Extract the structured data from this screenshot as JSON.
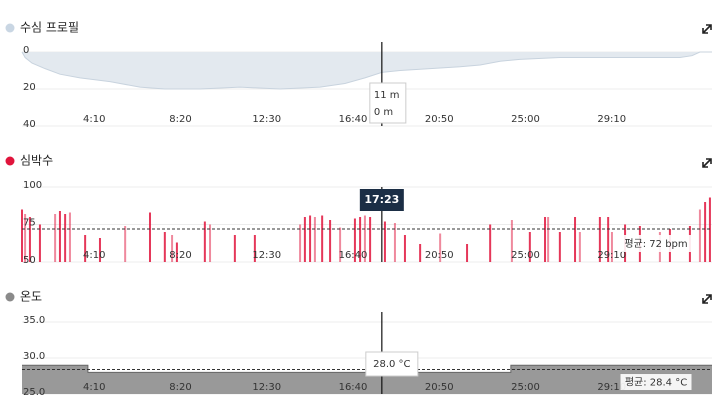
{
  "cursor": {
    "value": 1043,
    "label": "17:23"
  },
  "chart_data": [
    {
      "type": "area",
      "title": "수심 프로필",
      "color": "#c9d6e3",
      "fill": "#e3e9ef",
      "y_inverted": true,
      "ylim": [
        0,
        40
      ],
      "yticks": [
        0,
        20,
        40
      ],
      "xlim": [
        0,
        2000
      ],
      "xticks": [
        {
          "value": 250,
          "label": "4:10"
        },
        {
          "value": 500,
          "label": "8:20"
        },
        {
          "value": 750,
          "label": "12:30"
        },
        {
          "value": 1000,
          "label": "16:40"
        },
        {
          "value": 1250,
          "label": "20:50"
        },
        {
          "value": 1500,
          "label": "25:00"
        },
        {
          "value": 1750,
          "label": "29:10"
        }
      ],
      "x": [
        0,
        9,
        29,
        67,
        110,
        168,
        255,
        342,
        414,
        516,
        632,
        748,
        864,
        936,
        994,
        1043,
        1096,
        1183,
        1270,
        1328,
        1386,
        1443,
        1559,
        1733,
        1907,
        1942,
        1965,
        2000
      ],
      "values": [
        0,
        3,
        6,
        9,
        12,
        14,
        16,
        19,
        20,
        20,
        19,
        20,
        19,
        17,
        14,
        11,
        10,
        9,
        8,
        7,
        5,
        4,
        3,
        3,
        3,
        2,
        0,
        0
      ],
      "tooltip": [
        "11 m",
        "0 m"
      ]
    },
    {
      "type": "bar",
      "title": "심박수",
      "color": "#e0143c",
      "ylim": [
        50,
        100
      ],
      "yticks": [
        50,
        75,
        100
      ],
      "xlim": [
        0,
        2000
      ],
      "xticks": [
        {
          "value": 250,
          "label": "4:10"
        },
        {
          "value": 500,
          "label": "8:20"
        },
        {
          "value": 750,
          "label": "12:30"
        },
        {
          "value": 1000,
          "label": "16:40"
        },
        {
          "value": 1250,
          "label": "20:50"
        },
        {
          "value": 1500,
          "label": "25:00"
        },
        {
          "value": 1750,
          "label": "29:10"
        }
      ],
      "x": [
        0,
        9,
        23,
        52,
        96,
        110,
        125,
        139,
        183,
        226,
        299,
        371,
        414,
        435,
        449,
        530,
        545,
        617,
        675,
        806,
        820,
        835,
        849,
        870,
        893,
        922,
        965,
        980,
        994,
        1009,
        1052,
        1081,
        1110,
        1154,
        1212,
        1290,
        1357,
        1420,
        1472,
        1516,
        1525,
        1559,
        1603,
        1617,
        1675,
        1699,
        1710,
        1748,
        1791,
        1849,
        1878,
        1936,
        1965,
        1980,
        1994
      ],
      "values": [
        85,
        82,
        80,
        75,
        82,
        84,
        82,
        83,
        68,
        66,
        74,
        83,
        70,
        68,
        63,
        77,
        75,
        68,
        68,
        75,
        80,
        81,
        80,
        81,
        78,
        73,
        79,
        80,
        81,
        80,
        77,
        76,
        68,
        62,
        69,
        62,
        75,
        78,
        70,
        80,
        80,
        70,
        80,
        70,
        80,
        80,
        70,
        75,
        74,
        70,
        72,
        74,
        85,
        90,
        93
      ],
      "average": 72,
      "average_label": "평균: 72 bpm"
    },
    {
      "type": "area",
      "title": "온도",
      "color": "#8a8a8a",
      "fill": "#999999",
      "ylim": [
        25,
        35
      ],
      "yticks": [
        {
          "value": 25,
          "label": "25.0"
        },
        {
          "value": 30,
          "label": "30.0"
        },
        {
          "value": 35,
          "label": "35.0"
        }
      ],
      "xlim": [
        0,
        2000
      ],
      "xticks": [
        {
          "value": 250,
          "label": "4:10"
        },
        {
          "value": 500,
          "label": "8:20"
        },
        {
          "value": 750,
          "label": "12:30"
        },
        {
          "value": 1000,
          "label": "16:40"
        },
        {
          "value": 1250,
          "label": "20:50"
        },
        {
          "value": 1500,
          "label": "25:00"
        },
        {
          "value": 1750,
          "label": "29:10"
        }
      ],
      "x": [
        0,
        191,
        191,
        1417,
        1417,
        2000
      ],
      "values": [
        29,
        29,
        28,
        28,
        29,
        29
      ],
      "average": 28.4,
      "average_label": "평균: 28.4 °C",
      "tooltip": [
        "28.0 °C"
      ]
    }
  ]
}
